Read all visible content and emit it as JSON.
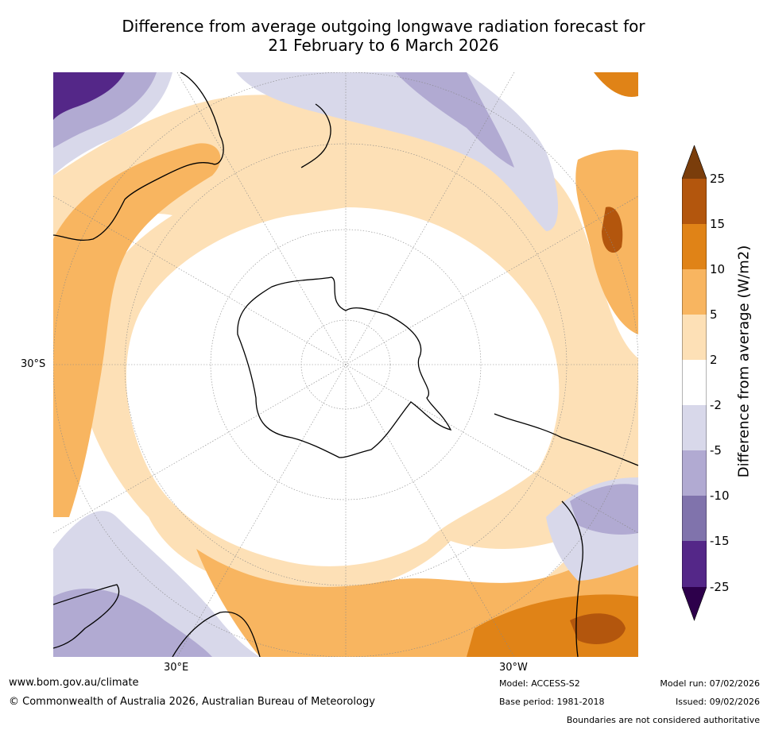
{
  "title": {
    "line1": "Difference from average outgoing longwave radiation forecast for",
    "line2": "21 February to 6 March 2026"
  },
  "map": {
    "projection": "south-polar-stereographic",
    "lat_label": "30°S",
    "lon_labels": [
      "30°E",
      "30°W"
    ]
  },
  "colorbar": {
    "label": "Difference from average (W/m2)",
    "ticks": [
      "25",
      "15",
      "10",
      "5",
      "2",
      "-2",
      "-5",
      "-10",
      "-15",
      "-25"
    ],
    "colors": {
      "above_25": "#7a3d0b",
      "15_25": "#b3560d",
      "10_15": "#e08317",
      "5_10": "#f8b560",
      "2_5": "#fde0b6",
      "m2_2": "#ffffff",
      "m5_m2": "#d8d8ea",
      "m10_m5": "#b1aad2",
      "m15_m10": "#8073ac",
      "m25_m15": "#542788",
      "below_m25": "#2d004b"
    }
  },
  "footer": {
    "website": "www.bom.gov.au/climate",
    "copyright": "© Commonwealth of Australia 2026, Australian Bureau of Meteorology",
    "model": "Model: ACCESS-S2",
    "base_period": "Base period: 1981-2018",
    "model_run": "Model run: 07/02/2026",
    "issued": "Issued: 09/02/2026",
    "disclaimer": "Boundaries are not considered authoritative"
  }
}
